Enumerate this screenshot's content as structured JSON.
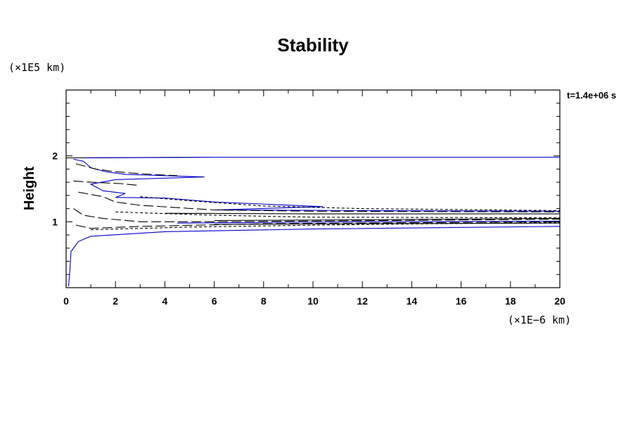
{
  "chart_data": {
    "type": "contour",
    "title": "Stability",
    "ylabel": "Height",
    "y_unit": "(×1E5 km)",
    "x_unit": "(×1E−6 km)",
    "time_label": "t=1.4e+06 s",
    "xlim": [
      0,
      20
    ],
    "ylim": [
      0,
      3
    ],
    "x_ticks": [
      "0",
      "2",
      "4",
      "6",
      "8",
      "10",
      "12",
      "14",
      "16",
      "18",
      "20"
    ],
    "y_ticks": [
      "1",
      "2"
    ],
    "x_tick_values": [
      0,
      2,
      4,
      6,
      8,
      10,
      12,
      14,
      16,
      18,
      20
    ],
    "y_tick_values": [
      1,
      2
    ],
    "grid": false,
    "colors": {
      "blue": "#0000cc",
      "black": "#000000"
    },
    "series": [
      {
        "style": "solid",
        "color": "#000000",
        "points": [
          [
            0.0,
            1.97
          ],
          [
            6.0,
            1.98
          ],
          [
            20.0,
            1.98
          ]
        ]
      },
      {
        "style": "solid",
        "color": "#0000cc",
        "points": [
          [
            0.8,
            1.97
          ],
          [
            6.0,
            1.98
          ],
          [
            20.0,
            1.98
          ]
        ]
      },
      {
        "style": "solid",
        "color": "#0000cc",
        "points": [
          [
            0.3,
            1.95
          ],
          [
            0.7,
            1.92
          ],
          [
            1.0,
            1.82
          ],
          [
            1.6,
            1.76
          ],
          [
            2.4,
            1.72
          ],
          [
            5.6,
            1.68
          ],
          [
            2.0,
            1.64
          ],
          [
            1.0,
            1.57
          ],
          [
            1.5,
            1.47
          ],
          [
            2.4,
            1.43
          ],
          [
            2.0,
            1.37
          ],
          [
            4.0,
            1.36
          ],
          [
            6.0,
            1.3
          ],
          [
            10.4,
            1.23
          ],
          [
            6.0,
            1.18
          ],
          [
            12.0,
            1.17
          ],
          [
            20.0,
            1.16
          ]
        ]
      },
      {
        "style": "solid",
        "color": "#0000cc",
        "points": [
          [
            0.1,
            0.02
          ],
          [
            0.15,
            0.25
          ],
          [
            0.2,
            0.55
          ],
          [
            0.5,
            0.7
          ],
          [
            1.0,
            0.78
          ],
          [
            4.0,
            0.85
          ],
          [
            10.0,
            0.89
          ],
          [
            20.0,
            0.93
          ]
        ]
      },
      {
        "style": "solid",
        "color": "#0000cc",
        "points": [
          [
            4.5,
            0.98
          ],
          [
            8.0,
            0.99
          ],
          [
            12.0,
            1.0
          ],
          [
            20.0,
            1.01
          ]
        ]
      },
      {
        "style": "solid",
        "color": "#000000",
        "points": [
          [
            4.0,
            1.13
          ],
          [
            10.0,
            1.12
          ],
          [
            20.0,
            1.12
          ]
        ]
      },
      {
        "style": "solid",
        "color": "#000000",
        "points": [
          [
            6.0,
            1.02
          ],
          [
            12.0,
            1.03
          ],
          [
            20.0,
            1.05
          ]
        ]
      },
      {
        "style": "solid",
        "color": "#000000",
        "points": [
          [
            6.0,
            0.96
          ],
          [
            12.0,
            0.97
          ],
          [
            20.0,
            0.98
          ]
        ]
      },
      {
        "style": "dashed",
        "color": "#000000",
        "points": [
          [
            0.4,
            1.88
          ],
          [
            1.2,
            1.8
          ],
          [
            2.0,
            1.76
          ],
          [
            3.0,
            1.73
          ],
          [
            4.5,
            1.7
          ]
        ]
      },
      {
        "style": "dashed",
        "color": "#000000",
        "points": [
          [
            0.3,
            1.62
          ],
          [
            1.0,
            1.6
          ],
          [
            2.2,
            1.58
          ],
          [
            3.0,
            1.55
          ]
        ]
      },
      {
        "style": "dashed",
        "color": "#000000",
        "points": [
          [
            0.5,
            1.45
          ],
          [
            1.5,
            1.38
          ],
          [
            2.0,
            1.3
          ],
          [
            3.0,
            1.25
          ],
          [
            6.0,
            1.18
          ],
          [
            10.0,
            1.16
          ],
          [
            20.0,
            1.15
          ]
        ]
      },
      {
        "style": "dashed",
        "color": "#000000",
        "points": [
          [
            0.3,
            1.2
          ],
          [
            0.7,
            1.1
          ],
          [
            1.5,
            1.05
          ],
          [
            3.0,
            1.0
          ],
          [
            6.0,
            1.0
          ],
          [
            20.0,
            1.04
          ]
        ]
      },
      {
        "style": "dashed",
        "color": "#000000",
        "points": [
          [
            0.4,
            0.95
          ],
          [
            1.0,
            0.9
          ],
          [
            3.0,
            0.93
          ],
          [
            8.0,
            0.97
          ],
          [
            20.0,
            1.0
          ]
        ]
      },
      {
        "style": "dotted",
        "color": "#000000",
        "points": [
          [
            2.0,
            1.15
          ],
          [
            6.0,
            1.1
          ],
          [
            10.0,
            1.07
          ],
          [
            20.0,
            1.06
          ]
        ]
      },
      {
        "style": "dotted",
        "color": "#000000",
        "points": [
          [
            3.0,
            1.38
          ],
          [
            5.0,
            1.32
          ],
          [
            8.0,
            1.24
          ],
          [
            12.0,
            1.2
          ],
          [
            20.0,
            1.17
          ]
        ]
      },
      {
        "style": "dotted",
        "color": "#000000",
        "points": [
          [
            1.0,
            0.88
          ],
          [
            5.0,
            0.92
          ],
          [
            12.0,
            0.96
          ],
          [
            20.0,
            0.99
          ]
        ]
      }
    ]
  }
}
